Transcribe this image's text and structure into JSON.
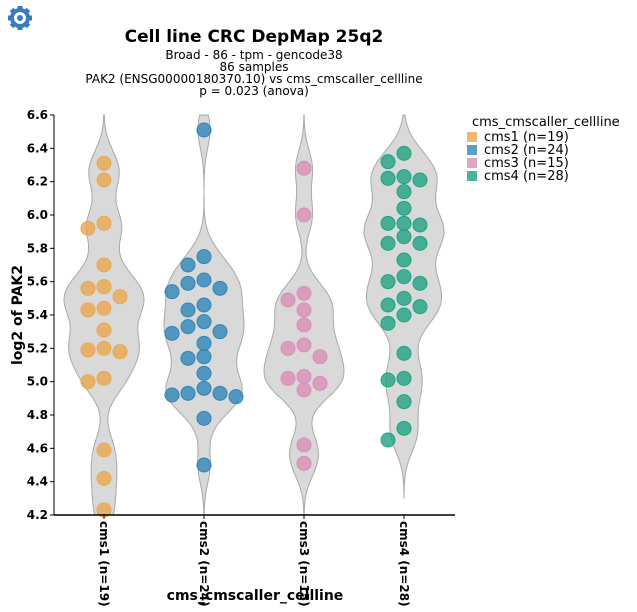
{
  "toolbar": {
    "settings_icon": "gear-icon",
    "icon_color": "#3a7bc0"
  },
  "chart_data": {
    "type": "violin",
    "title": "Cell line CRC DepMap 25q2",
    "subtitles": [
      "Broad - 86 - tpm - gencode38",
      "86 samples",
      "PAK2 (ENSG00000180370.10) vs cms_cmscaller_cellline",
      "p = 0.023 (anova)"
    ],
    "xlabel": "cms_cmscaller_cellline",
    "ylabel": "log2 of PAK2",
    "ylim": [
      4.2,
      6.6
    ],
    "yticks": [
      "4.2",
      "4.4",
      "4.6",
      "4.8",
      "5.0",
      "5.2",
      "5.4",
      "5.6",
      "5.8",
      "6.0",
      "6.2",
      "6.4",
      "6.6"
    ],
    "legend_title": "cms_cmscaller_cellline",
    "legend_position": "right",
    "violin_color": "#d9d9d9",
    "groups": [
      {
        "name": "cms1",
        "tick_label": "cms1 (n=19)",
        "legend_label": "cms1 (n=19)",
        "color": "#e8a84f",
        "values": [
          6.31,
          6.21,
          5.92,
          5.95,
          5.7,
          5.56,
          5.57,
          5.51,
          5.44,
          5.43,
          5.31,
          5.2,
          5.19,
          5.18,
          5.02,
          5.0,
          4.59,
          4.42,
          4.23
        ]
      },
      {
        "name": "cms2",
        "tick_label": "cms2 (n=24)",
        "legend_label": "cms2 (n=24)",
        "color": "#2f86b8",
        "values": [
          6.51,
          5.75,
          5.7,
          5.61,
          5.59,
          5.56,
          5.54,
          5.46,
          5.43,
          5.36,
          5.33,
          5.3,
          5.29,
          5.23,
          5.15,
          5.14,
          5.05,
          4.96,
          4.93,
          4.93,
          4.92,
          4.91,
          4.78,
          4.5
        ]
      },
      {
        "name": "cms3",
        "tick_label": "cms3 (n=15)",
        "legend_label": "cms3 (n=15)",
        "color": "#d88fb5",
        "values": [
          6.28,
          6.0,
          5.53,
          5.49,
          5.43,
          5.34,
          5.22,
          5.2,
          5.15,
          5.03,
          5.02,
          4.99,
          4.95,
          4.62,
          4.51
        ]
      },
      {
        "name": "cms4",
        "tick_label": "cms4 (n=28)",
        "legend_label": "cms4 (n=28)",
        "color": "#1fa383",
        "values": [
          6.37,
          6.32,
          6.23,
          6.22,
          6.21,
          6.14,
          6.04,
          5.95,
          5.95,
          5.94,
          5.87,
          5.83,
          5.83,
          5.73,
          5.63,
          5.6,
          5.59,
          5.5,
          5.46,
          5.45,
          5.4,
          5.35,
          5.17,
          5.02,
          5.01,
          4.88,
          4.72,
          4.65
        ]
      }
    ]
  }
}
